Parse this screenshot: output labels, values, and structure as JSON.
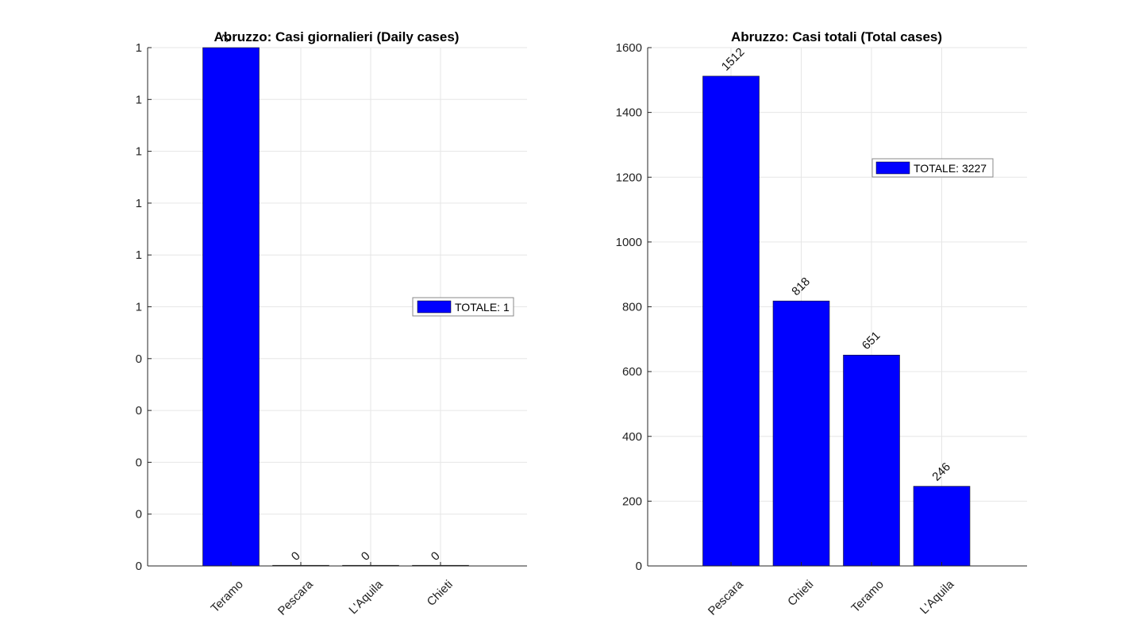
{
  "chart_data": [
    {
      "type": "bar",
      "title": "Abruzzo: Casi giornalieri (Daily cases)",
      "categories": [
        "Teramo",
        "Pescara",
        "L'Aquila",
        "Chieti"
      ],
      "values": [
        1,
        0,
        0,
        0
      ],
      "data_labels": [
        "1",
        "0",
        "0",
        "0"
      ],
      "xlabel": "",
      "ylabel": "",
      "ylim": [
        0,
        1
      ],
      "yticks": [
        0,
        0.1,
        0.2,
        0.3,
        0.4,
        0.5,
        0.6,
        0.7,
        0.8,
        0.9,
        1
      ],
      "ytick_labels": [
        "0",
        "0",
        "0",
        "0",
        "0",
        "1",
        "1",
        "1",
        "1",
        "1",
        "1"
      ],
      "grid": true,
      "legend": {
        "label": "TOTALE: 1",
        "placement": "right"
      },
      "bar_color": "#0000ff"
    },
    {
      "type": "bar",
      "title": "Abruzzo: Casi totali (Total cases)",
      "categories": [
        "Pescara",
        "Chieti",
        "Teramo",
        "L'Aquila"
      ],
      "values": [
        1512,
        818,
        651,
        246
      ],
      "data_labels": [
        "1512",
        "818",
        "651",
        "246"
      ],
      "xlabel": "",
      "ylabel": "",
      "ylim": [
        0,
        1600
      ],
      "yticks": [
        0,
        200,
        400,
        600,
        800,
        1000,
        1200,
        1400,
        1600
      ],
      "ytick_labels": [
        "0",
        "200",
        "400",
        "600",
        "800",
        "1000",
        "1200",
        "1400",
        "1600"
      ],
      "grid": true,
      "legend": {
        "label": "TOTALE: 3227",
        "placement": "top-right"
      },
      "bar_color": "#0000ff"
    }
  ]
}
